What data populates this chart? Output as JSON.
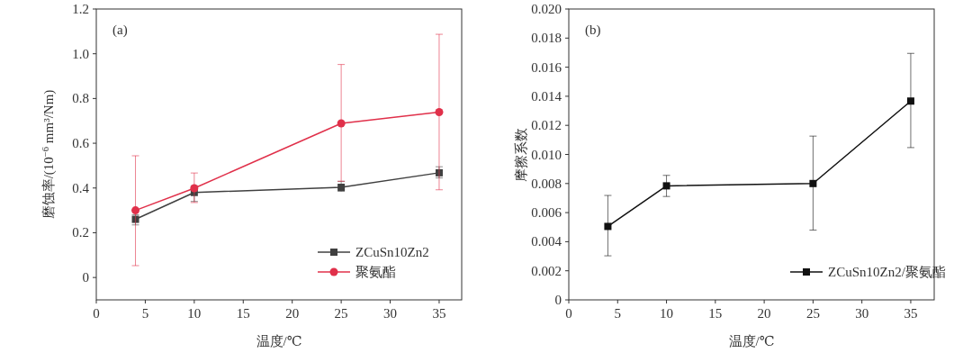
{
  "chart_data": [
    {
      "type": "line",
      "xlabel": "温度/℃",
      "ylabel": "磨蚀率/(10$^{−6}$ mm³/Nm)",
      "x": [
        4,
        10,
        25,
        35
      ],
      "xlim": [
        0,
        37.3
      ],
      "xticks": [
        0,
        5,
        10,
        15,
        20,
        25,
        30,
        35
      ],
      "ylim": [
        -0.1,
        1.2
      ],
      "yticks": [
        0,
        0.2,
        0.4,
        0.6,
        0.8,
        {
          "value": 1,
          "label": "1.0"
        },
        1.2
      ],
      "legend": "bottom right",
      "annotations": [
        "(a)"
      ],
      "series": [
        {
          "name": "ZCuSn10Zn2",
          "color": "#404040",
          "marker": "square",
          "values": [
            0.26,
            0.38,
            0.403,
            0.468
          ],
          "errors": [
            [
              0.235,
              0.28
            ],
            [
              0.34,
              0.41
            ],
            [
              0.385,
              0.43
            ],
            [
              0.445,
              0.495
            ]
          ]
        },
        {
          "name": "聚氨酯",
          "color": "#e0304a",
          "marker": "circle",
          "values": [
            0.3,
            0.399,
            0.689,
            0.739
          ],
          "errors": [
            [
              0.053,
              0.544
            ],
            [
              0.335,
              0.467
            ],
            [
              0.43,
              0.952
            ],
            [
              0.392,
              1.087
            ]
          ]
        }
      ]
    },
    {
      "type": "line",
      "xlabel": "温度/℃",
      "ylabel": "摩擦系数",
      "x": [
        4,
        10,
        25,
        35
      ],
      "xlim": [
        0,
        37.4
      ],
      "xticks": [
        0,
        5,
        10,
        15,
        20,
        25,
        30,
        35
      ],
      "ylim": [
        0,
        0.02
      ],
      "yticks": [
        0,
        0.002,
        0.004,
        0.006,
        0.008,
        {
          "value": 0.01,
          "label": "0.010"
        },
        0.012,
        0.014,
        0.016,
        0.018,
        {
          "value": 0.02,
          "label": "0.020"
        }
      ],
      "legend": "bottom right",
      "annotations": [
        "(b)"
      ],
      "series": [
        {
          "name": "ZCuSn10Zn2/聚氨酯",
          "color": "#111111",
          "marker": "square",
          "values": [
            0.00505,
            0.00784,
            0.008,
            0.01367
          ],
          "errors": [
            [
              0.00303,
              0.00718
            ],
            [
              0.00711,
              0.00856
            ],
            [
              0.0048,
              0.01126
            ],
            [
              0.01047,
              0.01695
            ]
          ]
        }
      ]
    }
  ]
}
